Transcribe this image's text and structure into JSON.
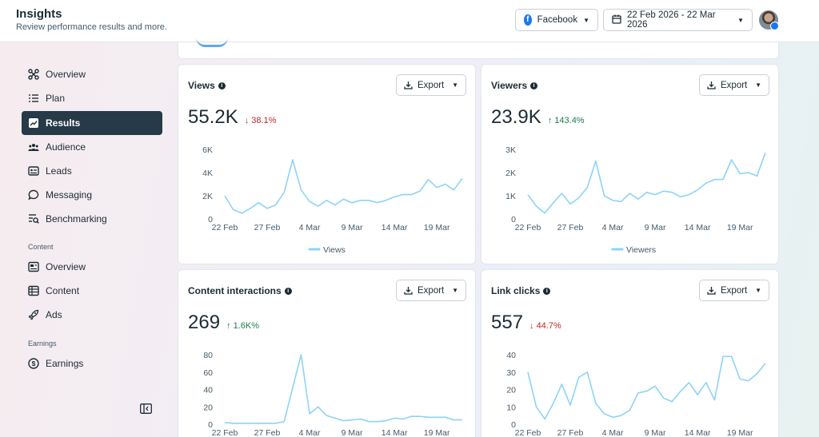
{
  "header": {
    "title": "Insights",
    "subtitle": "Review performance results and more.",
    "platform_label": "Facebook",
    "date_range": "22 Feb 2026 - 22 Mar 2026"
  },
  "sidebar": {
    "items": [
      {
        "label": "Overview",
        "icon": "overview-icon"
      },
      {
        "label": "Plan",
        "icon": "plan-icon"
      },
      {
        "label": "Results",
        "icon": "results-icon",
        "active": true
      },
      {
        "label": "Audience",
        "icon": "audience-icon"
      },
      {
        "label": "Leads",
        "icon": "leads-icon"
      },
      {
        "label": "Messaging",
        "icon": "messaging-icon"
      },
      {
        "label": "Benchmarking",
        "icon": "benchmarking-icon"
      }
    ],
    "content_section": "Content",
    "content_items": [
      {
        "label": "Overview",
        "icon": "content-overview-icon"
      },
      {
        "label": "Content",
        "icon": "content-table-icon"
      },
      {
        "label": "Ads",
        "icon": "ads-icon"
      }
    ],
    "earnings_section": "Earnings",
    "earnings_items": [
      {
        "label": "Earnings",
        "icon": "earnings-icon"
      }
    ]
  },
  "cards": [
    {
      "title": "Views",
      "export_label": "Export",
      "value": "55.2K",
      "change": "38.1%",
      "direction": "down"
    },
    {
      "title": "Viewers",
      "export_label": "Export",
      "value": "23.9K",
      "change": "143.4%",
      "direction": "up"
    },
    {
      "title": "Content interactions",
      "export_label": "Export",
      "value": "269",
      "change": "1.6K%",
      "direction": "up"
    },
    {
      "title": "Link clicks",
      "export_label": "Export",
      "value": "557",
      "change": "44.7%",
      "direction": "down"
    }
  ],
  "colors": {
    "line": "#8fd3f4",
    "active_nav": "#263a48",
    "down": "#c0282b",
    "up": "#1d7c4d"
  },
  "chart_data": [
    {
      "type": "line",
      "x_ticks": [
        "22 Feb",
        "27 Feb",
        "4 Mar",
        "9 Mar",
        "14 Mar",
        "19 Mar"
      ],
      "y_ticks": [
        "6K",
        "4K",
        "2K",
        "0"
      ],
      "ylim": [
        0,
        6000
      ],
      "series": [
        {
          "name": "Views",
          "values": [
            2000,
            800,
            500,
            900,
            1400,
            900,
            1200,
            2300,
            5100,
            2500,
            1500,
            1100,
            1600,
            1200,
            1700,
            1400,
            1600,
            1600,
            1400,
            1600,
            1900,
            2100,
            2100,
            2400,
            3400,
            2700,
            3000,
            2500,
            3500
          ]
        }
      ]
    },
    {
      "type": "line",
      "x_ticks": [
        "22 Feb",
        "27 Feb",
        "4 Mar",
        "9 Mar",
        "14 Mar",
        "19 Mar"
      ],
      "y_ticks": [
        "3K",
        "2K",
        "1K",
        "0"
      ],
      "ylim": [
        0,
        3000
      ],
      "series": [
        {
          "name": "Viewers",
          "values": [
            1050,
            550,
            250,
            700,
            1100,
            650,
            900,
            1350,
            2500,
            1000,
            800,
            750,
            1100,
            850,
            1150,
            1050,
            1200,
            1150,
            950,
            1050,
            1250,
            1550,
            1700,
            1700,
            2550,
            1950,
            2000,
            1850,
            2850
          ]
        }
      ]
    },
    {
      "type": "line",
      "x_ticks": [
        "22 Feb",
        "27 Feb",
        "4 Mar",
        "9 Mar",
        "14 Mar",
        "19 Mar"
      ],
      "y_ticks": [
        "80",
        "60",
        "40",
        "20",
        "0"
      ],
      "ylim": [
        0,
        80
      ],
      "series": [
        {
          "name": "Content interactions",
          "values": [
            2,
            1,
            1,
            1,
            1,
            1,
            1,
            3,
            42,
            80,
            12,
            20,
            10,
            7,
            4,
            5,
            6,
            3,
            3,
            4,
            7,
            6,
            9,
            9,
            8,
            8,
            8,
            5,
            5
          ]
        }
      ]
    },
    {
      "type": "line",
      "x_ticks": [
        "22 Feb",
        "27 Feb",
        "4 Mar",
        "9 Mar",
        "14 Mar",
        "19 Mar"
      ],
      "y_ticks": [
        "40",
        "30",
        "20",
        "10",
        "0"
      ],
      "ylim": [
        0,
        40
      ],
      "series": [
        {
          "name": "Link clicks",
          "values": [
            30,
            10,
            3,
            12,
            23,
            11,
            27,
            30,
            12,
            6,
            4,
            5,
            8,
            18,
            19,
            22,
            15,
            13,
            19,
            24,
            17,
            24,
            14,
            39,
            39,
            26,
            25,
            29,
            35
          ]
        }
      ]
    }
  ]
}
